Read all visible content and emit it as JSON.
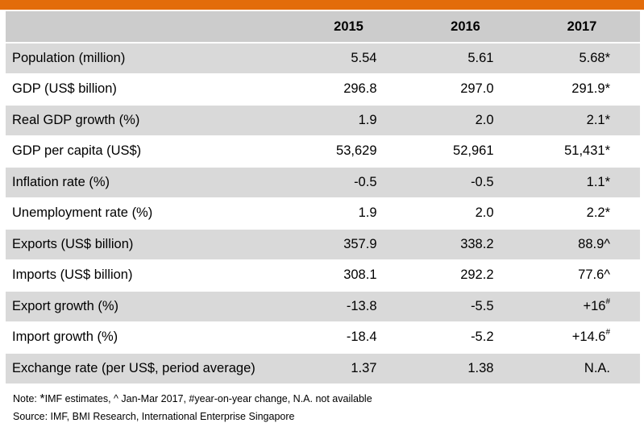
{
  "header": {
    "label": "",
    "years": [
      "2015",
      "2016",
      "2017"
    ]
  },
  "rows": [
    {
      "label": "Population (million)",
      "v2015": "5.54",
      "v2016": "5.61",
      "v2017": "5.68*",
      "sup2017": ""
    },
    {
      "label": "GDP (US$ billion)",
      "v2015": "296.8",
      "v2016": "297.0",
      "v2017": "291.9*",
      "sup2017": ""
    },
    {
      "label": "Real GDP growth (%)",
      "v2015": "1.9",
      "v2016": "2.0",
      "v2017": "2.1*",
      "sup2017": ""
    },
    {
      "label": "GDP per capita (US$)",
      "v2015": "53,629",
      "v2016": "52,961",
      "v2017": "51,431*",
      "sup2017": ""
    },
    {
      "label": "Inflation rate (%)",
      "v2015": "-0.5",
      "v2016": "-0.5",
      "v2017": "1.1*",
      "sup2017": ""
    },
    {
      "label": "Unemployment rate (%)",
      "v2015": "1.9",
      "v2016": "2.0",
      "v2017": "2.2*",
      "sup2017": ""
    },
    {
      "label": "Exports (US$ billion)",
      "v2015": "357.9",
      "v2016": "338.2",
      "v2017": "88.9^",
      "sup2017": ""
    },
    {
      "label": "Imports (US$ billion)",
      "v2015": "308.1",
      "v2016": "292.2",
      "v2017": "77.6^",
      "sup2017": ""
    },
    {
      "label": "Export growth (%)",
      "v2015": "-13.8",
      "v2016": "-5.5",
      "v2017": "+16",
      "sup2017": "#"
    },
    {
      "label": "Import growth (%)",
      "v2015": "-18.4",
      "v2016": "-5.2",
      "v2017": "+14.6",
      "sup2017": "#"
    },
    {
      "label": "Exchange rate (per US$, period average)",
      "v2015": "1.37",
      "v2016": "1.38",
      "v2017": "N.A.",
      "sup2017": ""
    }
  ],
  "notes": {
    "prefix": "Note: ",
    "star": "*",
    "text": "IMF estimates, ^ Jan-Mar 2017, #year-on-year change, N.A. not available",
    "source": "Source: IMF, BMI Research, International Enterprise Singapore"
  },
  "colors": {
    "accent_bar": "#e36c0a",
    "header_bg": "#cccccc",
    "shaded_row_bg": "#d9d9d9"
  }
}
